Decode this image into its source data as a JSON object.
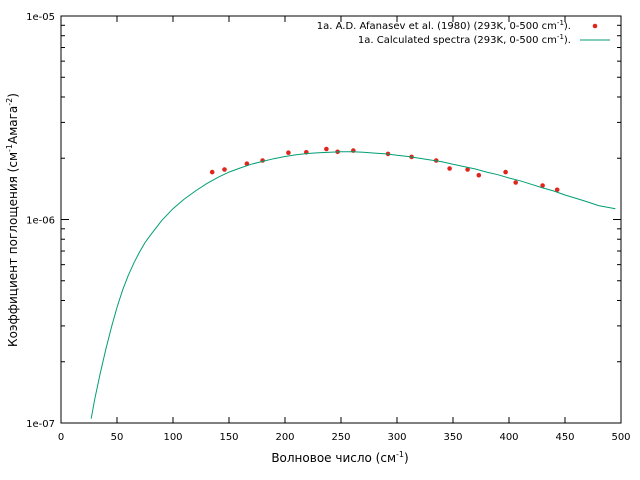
{
  "chart_data": {
    "type": "scatter",
    "xlabel": "Волновое число (см",
    "xlabel_sup": "-1",
    "xlabel_end": ")",
    "ylabel": "Коэффициент поглощения (см",
    "ylabel_sup1": "-1",
    "ylabel_mid": "Амага",
    "ylabel_sup2": "-2",
    "ylabel_end": ")",
    "xlim": [
      0,
      500
    ],
    "ylim": [
      1e-07,
      1e-05
    ],
    "y_scale": "log",
    "x_ticks": [
      "0",
      "50",
      "100",
      "150",
      "200",
      "250",
      "300",
      "350",
      "400",
      "450",
      "500"
    ],
    "y_ticks": [
      "1e-07",
      "1e-06",
      "1e-05"
    ],
    "legend_position": "top-right",
    "legend": [
      {
        "text": "1a. A.D. Afanasev et al. (1980) (293K, 0-500 cm",
        "sup": "-1",
        "end": ")."
      },
      {
        "text": "1a. Calculated spectra (293K, 0-500 cm",
        "sup": "-1",
        "end": ")."
      }
    ],
    "series": [
      {
        "type": "scatter",
        "color": "#e0261c",
        "x": [
          135,
          146,
          166,
          180,
          203,
          219,
          237,
          247,
          261,
          292,
          313,
          335,
          347,
          363,
          373,
          397,
          406,
          430,
          443
        ],
        "y": [
          1.71e-06,
          1.76e-06,
          1.88e-06,
          1.95e-06,
          2.13e-06,
          2.14e-06,
          2.22e-06,
          2.15e-06,
          2.18e-06,
          2.1e-06,
          2.03e-06,
          1.95e-06,
          1.78e-06,
          1.76e-06,
          1.65e-06,
          1.71e-06,
          1.52e-06,
          1.47e-06,
          1.4e-06
        ]
      },
      {
        "type": "line",
        "color": "#009e73",
        "x": [
          27,
          30,
          35,
          40,
          45,
          50,
          55,
          60,
          65,
          70,
          75,
          80,
          90,
          100,
          110,
          120,
          130,
          140,
          150,
          160,
          170,
          180,
          190,
          200,
          210,
          220,
          230,
          240,
          250,
          260,
          270,
          280,
          290,
          300,
          310,
          320,
          330,
          340,
          350,
          360,
          370,
          380,
          390,
          400,
          410,
          420,
          430,
          440,
          450,
          460,
          470,
          480,
          495
        ],
        "y": [
          1.05e-07,
          1.3e-07,
          1.75e-07,
          2.3e-07,
          2.95e-07,
          3.7e-07,
          4.5e-07,
          5.3e-07,
          6.1e-07,
          6.9e-07,
          7.7e-07,
          8.4e-07,
          9.9e-07,
          1.13e-06,
          1.26e-06,
          1.38e-06,
          1.5e-06,
          1.61e-06,
          1.71e-06,
          1.79e-06,
          1.87e-06,
          1.93e-06,
          1.99e-06,
          2.04e-06,
          2.08e-06,
          2.11e-06,
          2.13e-06,
          2.14e-06,
          2.15e-06,
          2.15e-06,
          2.14e-06,
          2.12e-06,
          2.1e-06,
          2.07e-06,
          2.04e-06,
          2e-06,
          1.96e-06,
          1.92e-06,
          1.87e-06,
          1.82e-06,
          1.77e-06,
          1.71e-06,
          1.66e-06,
          1.6e-06,
          1.55e-06,
          1.49e-06,
          1.43e-06,
          1.38e-06,
          1.32e-06,
          1.27e-06,
          1.22e-06,
          1.17e-06,
          1.13e-06
        ]
      }
    ]
  }
}
